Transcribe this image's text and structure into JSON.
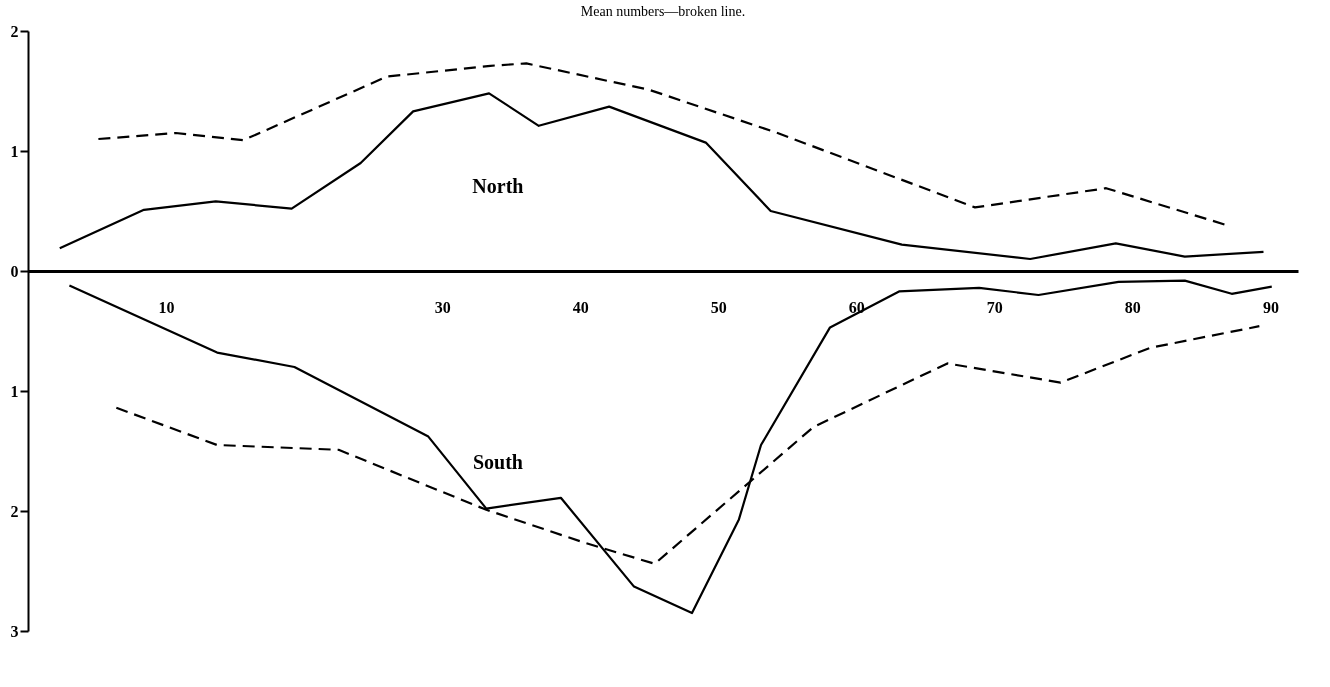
{
  "chart_data": {
    "type": "line",
    "title": "Mean numbers—broken line.",
    "xlim": [
      0,
      92
    ],
    "xticks": [
      10,
      30,
      40,
      50,
      60,
      70,
      80,
      90
    ],
    "ylim": [
      -3,
      2
    ],
    "yticks": [
      2,
      1,
      0,
      {
        "value": -1,
        "label": "1"
      },
      {
        "value": -2,
        "label": "2"
      },
      {
        "value": -3,
        "label": "3"
      }
    ],
    "grid": false,
    "marker": "none",
    "annotations": [
      "North",
      "South"
    ],
    "series": [
      {
        "color": "#000000",
        "line_style": "solid",
        "x": [
          2.3,
          8.4,
          13.6,
          19.1,
          24.1,
          27.9,
          33.4,
          37.0,
          42.1,
          49.1,
          53.8,
          63.3,
          72.6,
          78.8,
          83.8,
          89.5
        ],
        "values": [
          0.19,
          0.51,
          0.58,
          0.52,
          0.9,
          1.33,
          1.48,
          1.21,
          1.37,
          1.07,
          0.5,
          0.22,
          0.1,
          0.23,
          0.12,
          0.16
        ]
      },
      {
        "color": "#000000",
        "line_style": "dashed",
        "x": [
          5.1,
          10.7,
          15.6,
          26.0,
          33.5,
          36.1,
          45.0,
          54.3,
          68.6,
          78.1,
          86.9
        ],
        "values": [
          1.1,
          1.15,
          1.09,
          1.62,
          1.71,
          1.73,
          1.51,
          1.15,
          0.53,
          0.69,
          0.38
        ]
      },
      {
        "color": "#000000",
        "line_style": "solid",
        "x": [
          3.0,
          13.7,
          19.3,
          29.0,
          33.2,
          38.6,
          43.9,
          48.1,
          51.5,
          53.1,
          58.1,
          63.1,
          68.9,
          73.2,
          79.0,
          83.8,
          87.2,
          90.1
        ],
        "values": [
          -0.12,
          -0.68,
          -0.8,
          -1.38,
          -1.98,
          -1.89,
          -2.63,
          -2.85,
          -2.07,
          -1.45,
          -0.47,
          -0.17,
          -0.14,
          -0.2,
          -0.09,
          -0.08,
          -0.19,
          -0.13
        ]
      },
      {
        "color": "#000000",
        "line_style": "dashed",
        "x": [
          6.4,
          13.7,
          22.5,
          33.2,
          40.2,
          45.4,
          56.9,
          66.6,
          74.8,
          81.3,
          89.2
        ],
        "values": [
          -1.14,
          -1.45,
          -1.49,
          -1.99,
          -2.26,
          -2.44,
          -1.3,
          -0.77,
          -0.93,
          -0.64,
          -0.46
        ]
      }
    ]
  }
}
